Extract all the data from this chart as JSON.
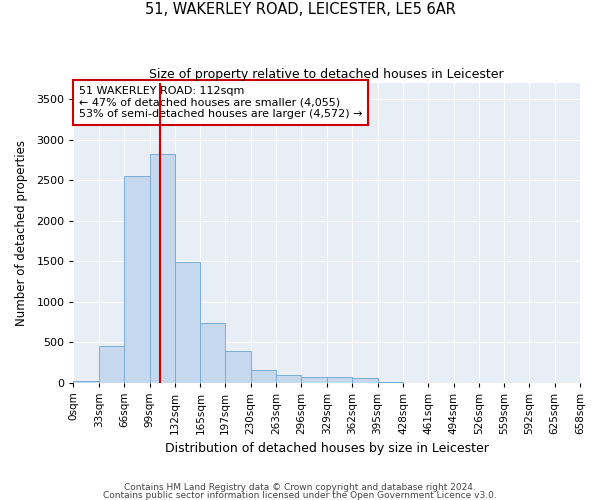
{
  "title1": "51, WAKERLEY ROAD, LEICESTER, LE5 6AR",
  "title2": "Size of property relative to detached houses in Leicester",
  "xlabel": "Distribution of detached houses by size in Leicester",
  "ylabel": "Number of detached properties",
  "bar_color": "#c5d8ee",
  "bar_edgecolor": "#7aadd4",
  "bg_color": "#e8eef6",
  "grid_color": "#ffffff",
  "annotation_box_color": "#cc0000",
  "annotation_line_color": "#cc0000",
  "property_line_x": 112,
  "annotation_text": "51 WAKERLEY ROAD: 112sqm\n← 47% of detached houses are smaller (4,055)\n53% of semi-detached houses are larger (4,572) →",
  "footer1": "Contains HM Land Registry data © Crown copyright and database right 2024.",
  "footer2": "Contains public sector information licensed under the Open Government Licence v3.0.",
  "bins": [
    0,
    33,
    66,
    99,
    132,
    165,
    197,
    230,
    263,
    296,
    329,
    362,
    395,
    428,
    461,
    494,
    527,
    559,
    592,
    625,
    658
  ],
  "bin_labels": [
    "0sqm",
    "33sqm",
    "66sqm",
    "99sqm",
    "132sqm",
    "165sqm",
    "197sqm",
    "230sqm",
    "263sqm",
    "296sqm",
    "329sqm",
    "362sqm",
    "395sqm",
    "428sqm",
    "461sqm",
    "494sqm",
    "526sqm",
    "559sqm",
    "592sqm",
    "625sqm",
    "658sqm"
  ],
  "counts": [
    20,
    450,
    2550,
    2820,
    1490,
    730,
    390,
    155,
    90,
    65,
    65,
    60,
    10,
    0,
    0,
    0,
    0,
    0,
    0,
    0
  ],
  "ylim": [
    0,
    3700
  ],
  "yticks": [
    0,
    500,
    1000,
    1500,
    2000,
    2500,
    3000,
    3500
  ]
}
